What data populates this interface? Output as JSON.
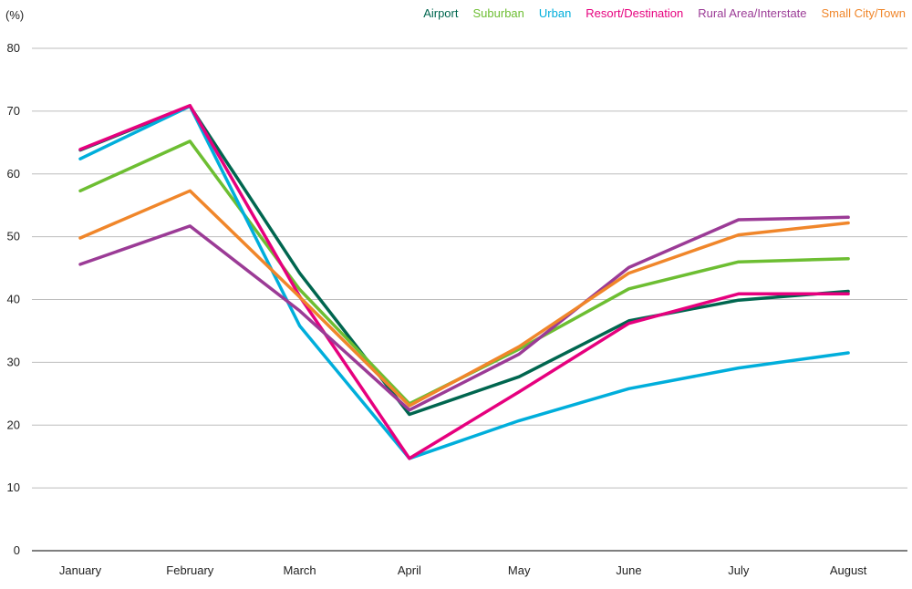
{
  "chart_data": {
    "type": "line",
    "title": "",
    "ylabel": "(%)",
    "xlabel": "",
    "ylim": [
      0,
      80
    ],
    "yticks": [
      0,
      10,
      20,
      30,
      40,
      50,
      60,
      70,
      80
    ],
    "grid": true,
    "legend_position": "top-right",
    "categories": [
      "January",
      "February",
      "March",
      "April",
      "May",
      "June",
      "July",
      "August"
    ],
    "series": [
      {
        "name": "Airport",
        "color": "#00664f",
        "values": [
          63.8,
          70.8,
          44.2,
          21.7,
          27.7,
          36.6,
          39.9,
          41.3
        ]
      },
      {
        "name": "Suburban",
        "color": "#6dbe32",
        "values": [
          57.3,
          65.2,
          41.6,
          23.4,
          32.1,
          41.7,
          46.0,
          46.5
        ]
      },
      {
        "name": "Urban",
        "color": "#00aedb",
        "values": [
          62.4,
          70.8,
          35.8,
          14.7,
          20.7,
          25.8,
          29.1,
          31.5
        ]
      },
      {
        "name": "Resort/Destination",
        "color": "#e6007e",
        "values": [
          63.9,
          70.9,
          40.5,
          14.7,
          25.3,
          36.2,
          40.9,
          40.9
        ]
      },
      {
        "name": "Rural Area/Interstate",
        "color": "#9b3b96",
        "values": [
          45.6,
          51.7,
          38.2,
          22.4,
          31.3,
          45.1,
          52.7,
          53.1
        ]
      },
      {
        "name": "Small City/Town",
        "color": "#f0862a",
        "values": [
          49.8,
          57.3,
          40.4,
          23.1,
          32.5,
          44.2,
          50.3,
          52.2
        ]
      }
    ]
  }
}
